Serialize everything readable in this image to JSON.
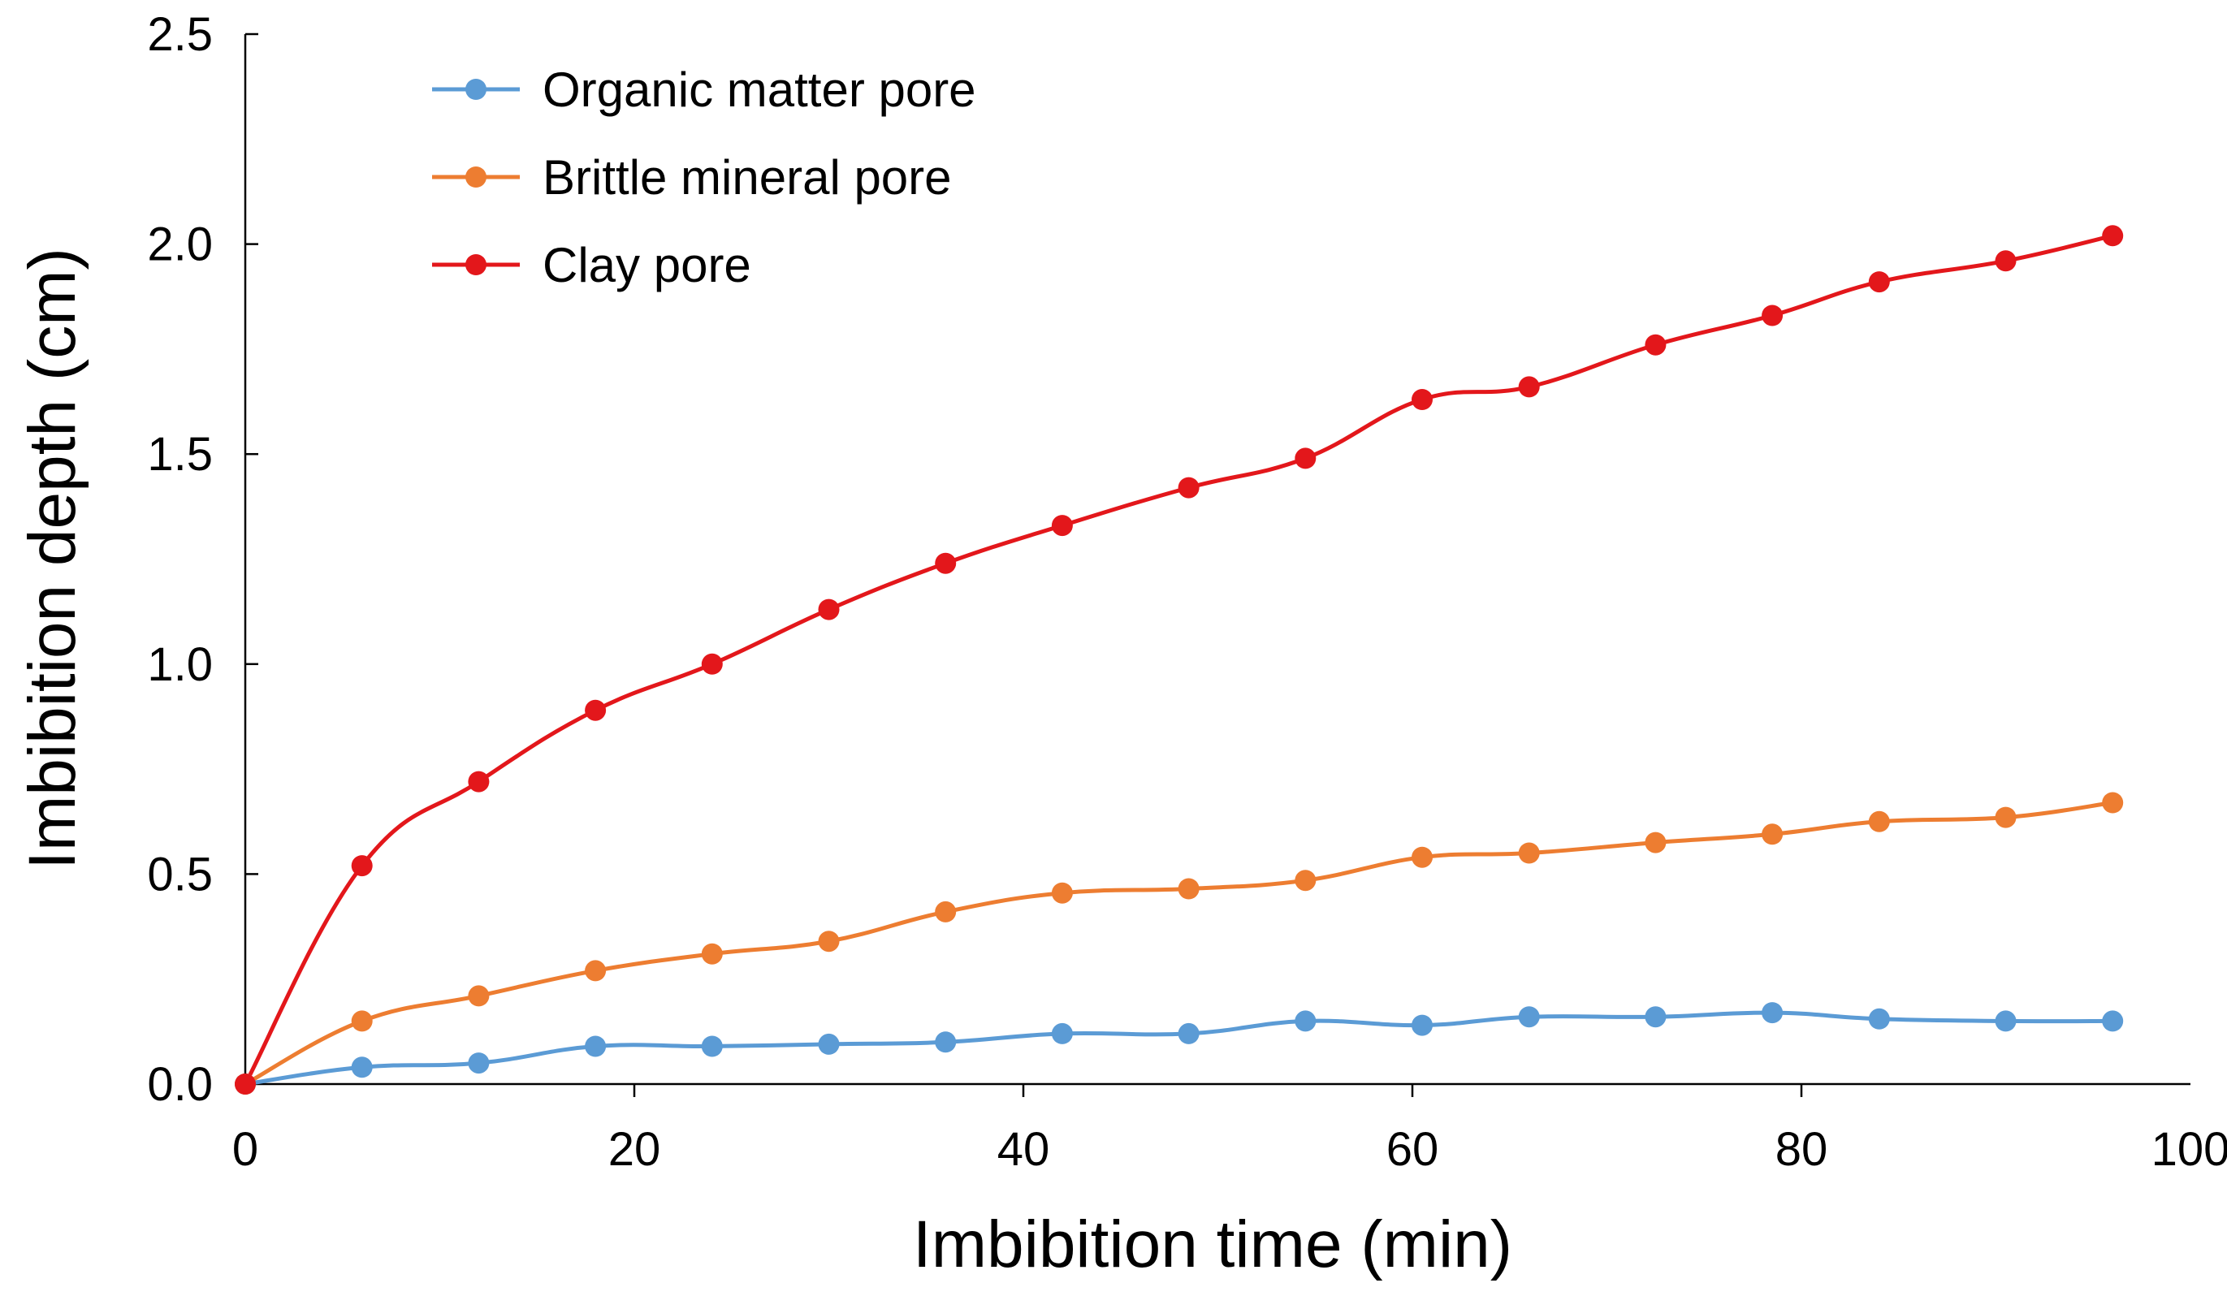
{
  "chart_data": {
    "type": "line",
    "title": "",
    "xlabel": "Imbibition time (min)",
    "ylabel": "Imbibition depth (cm)",
    "xlim": [
      0,
      100
    ],
    "ylim": [
      0,
      2.5
    ],
    "xticks": [
      0,
      20,
      40,
      60,
      80,
      100
    ],
    "xtick_labels": [
      "0",
      "20",
      "40",
      "60",
      "80",
      "100"
    ],
    "yticks": [
      0,
      0.5,
      1.0,
      1.5,
      2.0,
      2.5
    ],
    "ytick_labels": [
      "0.0",
      "0.5",
      "1.0",
      "1.5",
      "2.0",
      "2.5"
    ],
    "grid": false,
    "legend_position": "top-left",
    "x": [
      0,
      6,
      12,
      18,
      24,
      30,
      36,
      42,
      48.5,
      54.5,
      60.5,
      66,
      72.5,
      78.5,
      84,
      90.5,
      96
    ],
    "series": [
      {
        "name": "Organic matter pore",
        "color": "#5b9bd5",
        "values": [
          0,
          0.04,
          0.05,
          0.09,
          0.09,
          0.095,
          0.1,
          0.12,
          0.12,
          0.15,
          0.14,
          0.16,
          0.16,
          0.17,
          0.155,
          0.15,
          0.15
        ]
      },
      {
        "name": "Brittle mineral pore",
        "color": "#ed7d31",
        "values": [
          0,
          0.15,
          0.21,
          0.27,
          0.31,
          0.34,
          0.41,
          0.455,
          0.465,
          0.485,
          0.54,
          0.55,
          0.575,
          0.595,
          0.625,
          0.635,
          0.67
        ]
      },
      {
        "name": "Clay pore",
        "color": "#e3171b",
        "values": [
          0,
          0.52,
          0.72,
          0.89,
          1.0,
          1.13,
          1.24,
          1.33,
          1.42,
          1.49,
          1.63,
          1.66,
          1.76,
          1.83,
          1.91,
          1.96,
          2.02
        ]
      }
    ]
  }
}
